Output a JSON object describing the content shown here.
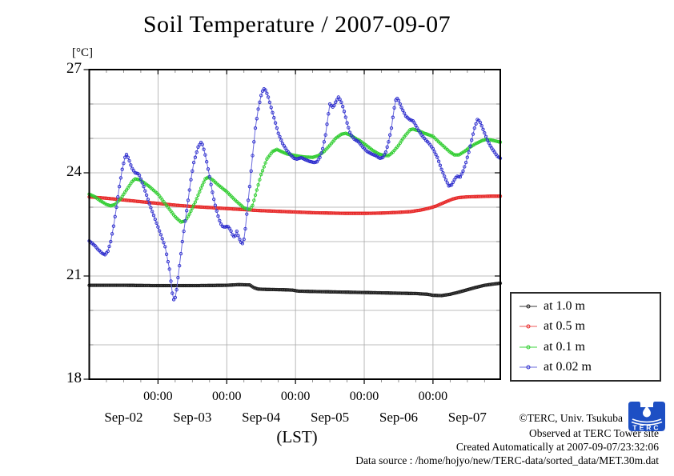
{
  "title": "Soil Temperature / 2007-09-07",
  "y_axis": {
    "unit_label": "[°C]",
    "major_ticks": [
      27,
      24,
      21,
      18
    ],
    "minor_ticks": [
      26,
      25,
      23,
      22,
      20,
      19
    ]
  },
  "x_axis": {
    "axis_label": "(LST)",
    "time_tick_label": "00:00",
    "major_ticks_hours": [
      24,
      48,
      72,
      96,
      120
    ],
    "minor_tick_step_hours": 6,
    "day_labels": [
      "Sep-02",
      "Sep-03",
      "Sep-04",
      "Sep-05",
      "Sep-06",
      "Sep-07"
    ],
    "day_label_noon_hours": [
      12,
      36,
      60,
      84,
      108,
      132
    ]
  },
  "legend": {
    "items": [
      {
        "label": "at 1.0 m",
        "color": "#1c1c1c",
        "line_color": "#3a3a3a"
      },
      {
        "label": "at 0.5 m",
        "color": "#e62525",
        "line_color": "#ef5a5a"
      },
      {
        "label": "at 0.1 m",
        "color": "#2ecc2e",
        "line_color": "#3ed43e"
      },
      {
        "label": "at 0.02 m",
        "color": "#2828cc",
        "line_color": "#6b6bdc"
      }
    ]
  },
  "footer": {
    "copyright": "©TERC, Univ. Tsukuba",
    "observed": "Observed at TERC Tower site",
    "created": "Created Automatically at 2007-09-07/23:32:06",
    "source": "Data source : /home/hojyo/new/TERC-data/sorted_data/MET.30m.dat",
    "logo_text": "TERC",
    "logo_color": "#1d4fc4"
  },
  "style": {
    "grid_color": "#a8a8a8",
    "axis_color": "#000000",
    "minor_tick_color": "#777777"
  },
  "chart_data": {
    "type": "line",
    "title": "Soil Temperature / 2007-09-07",
    "xlabel": "(LST)",
    "ylabel": "[°C]",
    "ylim": [
      18,
      27
    ],
    "x_unit": "hours since 2007-09-02 00:00 LST",
    "x_range": [
      0,
      143.5
    ],
    "sampling_interval_minutes": 30,
    "grid": true,
    "legend_position": "outside-right-bottom",
    "series": [
      {
        "name": "at 1.0 m",
        "color": "#1c1c1c",
        "line_color": "#3a3a3a",
        "points": [
          [
            0,
            20.73
          ],
          [
            12,
            20.73
          ],
          [
            24,
            20.72
          ],
          [
            36,
            20.72
          ],
          [
            48,
            20.73
          ],
          [
            52,
            20.75
          ],
          [
            56,
            20.74
          ],
          [
            57.5,
            20.66
          ],
          [
            59,
            20.62
          ],
          [
            62,
            20.61
          ],
          [
            68,
            20.6
          ],
          [
            71,
            20.59
          ],
          [
            73,
            20.56
          ],
          [
            78,
            20.55
          ],
          [
            84,
            20.54
          ],
          [
            90,
            20.53
          ],
          [
            96,
            20.52
          ],
          [
            102,
            20.51
          ],
          [
            108,
            20.5
          ],
          [
            114,
            20.49
          ],
          [
            118,
            20.47
          ],
          [
            120,
            20.44
          ],
          [
            123,
            20.43
          ],
          [
            126,
            20.47
          ],
          [
            129,
            20.53
          ],
          [
            132,
            20.6
          ],
          [
            135,
            20.67
          ],
          [
            138,
            20.73
          ],
          [
            140.5,
            20.76
          ],
          [
            143.5,
            20.79
          ]
        ]
      },
      {
        "name": "at 0.5 m",
        "color": "#e62525",
        "line_color": "#ef5a5a",
        "points": [
          [
            0,
            23.3
          ],
          [
            6,
            23.26
          ],
          [
            12,
            23.21
          ],
          [
            18,
            23.16
          ],
          [
            24,
            23.11
          ],
          [
            30,
            23.06
          ],
          [
            36,
            23.02
          ],
          [
            42,
            22.99
          ],
          [
            48,
            22.96
          ],
          [
            54,
            22.93
          ],
          [
            60,
            22.9
          ],
          [
            66,
            22.88
          ],
          [
            72,
            22.86
          ],
          [
            78,
            22.84
          ],
          [
            84,
            22.83
          ],
          [
            90,
            22.82
          ],
          [
            96,
            22.82
          ],
          [
            102,
            22.83
          ],
          [
            108,
            22.85
          ],
          [
            112,
            22.87
          ],
          [
            116,
            22.92
          ],
          [
            119,
            22.98
          ],
          [
            121,
            23.03
          ],
          [
            124,
            23.14
          ],
          [
            127,
            23.24
          ],
          [
            129,
            23.28
          ],
          [
            132,
            23.3
          ],
          [
            136,
            23.31
          ],
          [
            140,
            23.32
          ],
          [
            143.5,
            23.32
          ]
        ]
      },
      {
        "name": "at 0.1 m",
        "color": "#2ecc2e",
        "line_color": "#3ed43e",
        "points": [
          [
            0,
            23.38
          ],
          [
            2,
            23.3
          ],
          [
            4,
            23.18
          ],
          [
            6,
            23.08
          ],
          [
            7.5,
            23.04
          ],
          [
            9,
            23.08
          ],
          [
            11,
            23.25
          ],
          [
            13,
            23.5
          ],
          [
            15,
            23.75
          ],
          [
            16,
            23.82
          ],
          [
            17.5,
            23.8
          ],
          [
            19,
            23.72
          ],
          [
            21,
            23.6
          ],
          [
            24,
            23.38
          ],
          [
            27,
            23.05
          ],
          [
            30,
            22.72
          ],
          [
            32,
            22.57
          ],
          [
            33.5,
            22.6
          ],
          [
            35,
            22.8
          ],
          [
            37,
            23.15
          ],
          [
            39,
            23.55
          ],
          [
            40.5,
            23.82
          ],
          [
            41.5,
            23.87
          ],
          [
            43,
            23.8
          ],
          [
            45,
            23.65
          ],
          [
            48,
            23.45
          ],
          [
            51,
            23.2
          ],
          [
            54,
            22.98
          ],
          [
            56,
            22.93
          ],
          [
            57,
            23.05
          ],
          [
            58.5,
            23.5
          ],
          [
            60,
            23.95
          ],
          [
            62,
            24.4
          ],
          [
            64,
            24.62
          ],
          [
            65.5,
            24.68
          ],
          [
            67,
            24.62
          ],
          [
            69,
            24.55
          ],
          [
            72,
            24.5
          ],
          [
            75,
            24.46
          ],
          [
            78,
            24.45
          ],
          [
            80,
            24.5
          ],
          [
            82,
            24.62
          ],
          [
            84,
            24.8
          ],
          [
            86,
            25.0
          ],
          [
            88,
            25.12
          ],
          [
            89.5,
            25.15
          ],
          [
            91,
            25.1
          ],
          [
            93,
            25.0
          ],
          [
            95,
            24.9
          ],
          [
            97,
            24.78
          ],
          [
            99,
            24.65
          ],
          [
            101,
            24.55
          ],
          [
            103,
            24.5
          ],
          [
            104.5,
            24.5
          ],
          [
            106,
            24.6
          ],
          [
            108,
            24.8
          ],
          [
            110,
            25.05
          ],
          [
            112,
            25.25
          ],
          [
            113,
            25.27
          ],
          [
            115,
            25.22
          ],
          [
            117,
            25.15
          ],
          [
            120,
            25.06
          ],
          [
            122,
            24.9
          ],
          [
            124,
            24.75
          ],
          [
            126,
            24.6
          ],
          [
            127.5,
            24.52
          ],
          [
            129,
            24.52
          ],
          [
            131,
            24.62
          ],
          [
            133,
            24.75
          ],
          [
            135,
            24.85
          ],
          [
            137,
            24.93
          ],
          [
            138.5,
            24.97
          ],
          [
            140,
            24.96
          ],
          [
            142,
            24.92
          ],
          [
            143.5,
            24.89
          ]
        ]
      },
      {
        "name": "at 0.02 m",
        "color": "#2828cc",
        "line_color": "#6b6bdc",
        "points": [
          [
            0,
            22.02
          ],
          [
            1,
            21.95
          ],
          [
            2,
            21.88
          ],
          [
            3,
            21.78
          ],
          [
            4.5,
            21.66
          ],
          [
            5.5,
            21.62
          ],
          [
            6.5,
            21.72
          ],
          [
            7.5,
            22.0
          ],
          [
            8.5,
            22.45
          ],
          [
            9.5,
            23.0
          ],
          [
            10.5,
            23.6
          ],
          [
            11.5,
            24.1
          ],
          [
            12.5,
            24.45
          ],
          [
            13,
            24.53
          ],
          [
            13.8,
            24.4
          ],
          [
            14.8,
            24.15
          ],
          [
            16,
            24.0
          ],
          [
            17.3,
            23.97
          ],
          [
            19,
            23.6
          ],
          [
            21,
            23.1
          ],
          [
            23,
            22.65
          ],
          [
            25,
            22.2
          ],
          [
            26.5,
            21.85
          ],
          [
            28,
            21.2
          ],
          [
            29,
            20.5
          ],
          [
            29.7,
            20.24
          ],
          [
            30.5,
            20.6
          ],
          [
            31.5,
            21.3
          ],
          [
            32.5,
            22.0
          ],
          [
            33.5,
            22.6
          ],
          [
            34.5,
            23.2
          ],
          [
            35.5,
            23.8
          ],
          [
            36.5,
            24.3
          ],
          [
            38,
            24.75
          ],
          [
            39.2,
            24.91
          ],
          [
            40.3,
            24.6
          ],
          [
            41.3,
            24.2
          ],
          [
            42.3,
            23.75
          ],
          [
            43.3,
            23.3
          ],
          [
            44.3,
            22.95
          ],
          [
            45.3,
            22.65
          ],
          [
            46.3,
            22.45
          ],
          [
            47.3,
            22.42
          ],
          [
            48.3,
            22.45
          ],
          [
            49.3,
            22.35
          ],
          [
            50,
            22.2
          ],
          [
            50.8,
            22.12
          ],
          [
            51.5,
            22.3
          ],
          [
            52.3,
            22.1
          ],
          [
            53,
            21.98
          ],
          [
            53.7,
            21.93
          ],
          [
            54.3,
            22.2
          ],
          [
            55,
            22.8
          ],
          [
            56,
            23.6
          ],
          [
            57,
            24.5
          ],
          [
            58,
            25.3
          ],
          [
            59,
            25.85
          ],
          [
            60,
            26.25
          ],
          [
            60.8,
            26.45
          ],
          [
            61.6,
            26.4
          ],
          [
            62.5,
            26.2
          ],
          [
            63.5,
            25.9
          ],
          [
            64.5,
            25.6
          ],
          [
            66,
            25.15
          ],
          [
            67.5,
            24.85
          ],
          [
            69,
            24.65
          ],
          [
            70.5,
            24.5
          ],
          [
            71.5,
            24.42
          ],
          [
            72.5,
            24.4
          ],
          [
            74,
            24.44
          ],
          [
            75.5,
            24.38
          ],
          [
            77,
            24.33
          ],
          [
            78.5,
            24.3
          ],
          [
            79.5,
            24.32
          ],
          [
            80.5,
            24.45
          ],
          [
            81.5,
            24.7
          ],
          [
            82.5,
            25.1
          ],
          [
            83.3,
            25.6
          ],
          [
            84,
            26.0
          ],
          [
            84.5,
            25.95
          ],
          [
            85.2,
            25.9
          ],
          [
            86,
            26.05
          ],
          [
            87,
            26.2
          ],
          [
            87.8,
            26.1
          ],
          [
            88.8,
            25.85
          ],
          [
            90,
            25.45
          ],
          [
            91.2,
            25.12
          ],
          [
            92.5,
            24.98
          ],
          [
            94,
            24.9
          ],
          [
            95.5,
            24.75
          ],
          [
            97,
            24.62
          ],
          [
            98.5,
            24.55
          ],
          [
            100,
            24.5
          ],
          [
            101.5,
            24.42
          ],
          [
            102.5,
            24.45
          ],
          [
            103.5,
            24.6
          ],
          [
            104.5,
            24.9
          ],
          [
            105.5,
            25.3
          ],
          [
            106.3,
            25.8
          ],
          [
            107.2,
            26.2
          ],
          [
            108,
            26.1
          ],
          [
            109,
            25.9
          ],
          [
            110.5,
            25.65
          ],
          [
            111.8,
            25.55
          ],
          [
            113.2,
            25.5
          ],
          [
            114.5,
            25.3
          ],
          [
            116,
            25.1
          ],
          [
            117.5,
            24.95
          ],
          [
            118.5,
            24.87
          ],
          [
            120,
            24.7
          ],
          [
            121.5,
            24.45
          ],
          [
            123,
            24.1
          ],
          [
            124.5,
            23.8
          ],
          [
            125.5,
            23.62
          ],
          [
            126.5,
            23.65
          ],
          [
            127.5,
            23.8
          ],
          [
            128.3,
            23.9
          ],
          [
            129.5,
            23.88
          ],
          [
            130.5,
            24.05
          ],
          [
            131.5,
            24.3
          ],
          [
            132.5,
            24.6
          ],
          [
            133.5,
            24.95
          ],
          [
            134.5,
            25.3
          ],
          [
            135.6,
            25.57
          ],
          [
            136.6,
            25.45
          ],
          [
            137.8,
            25.2
          ],
          [
            139,
            24.95
          ],
          [
            140.2,
            24.75
          ],
          [
            141.5,
            24.6
          ],
          [
            142.5,
            24.48
          ],
          [
            143.5,
            24.42
          ]
        ]
      }
    ]
  }
}
